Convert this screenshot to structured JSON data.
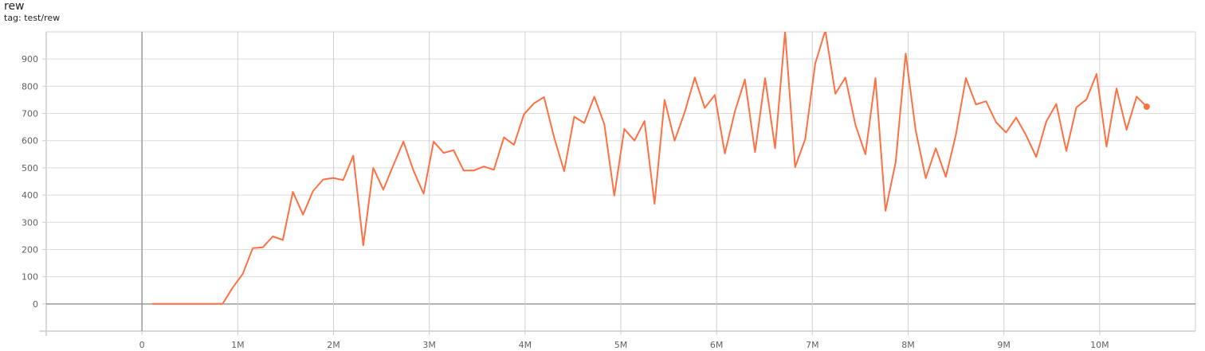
{
  "header": {
    "title": "rew",
    "tag": "tag: test/rew"
  },
  "chart_data": {
    "type": "line",
    "title": "rew",
    "subtitle": "tag: test/rew",
    "xlabel": "",
    "ylabel": "",
    "xlim": [
      -1000000,
      11000000
    ],
    "ylim": [
      -100,
      1000
    ],
    "grid": true,
    "line_color": "#ff7043",
    "xticks": [
      0,
      1000000,
      2000000,
      3000000,
      4000000,
      5000000,
      6000000,
      7000000,
      8000000,
      9000000,
      10000000
    ],
    "xtick_labels": [
      "0",
      "1M",
      "2M",
      "3M",
      "4M",
      "5M",
      "6M",
      "7M",
      "8M",
      "9M",
      "10M"
    ],
    "yticks": [
      0,
      100,
      200,
      300,
      400,
      500,
      600,
      700,
      800,
      900
    ],
    "ytick_labels": [
      "0",
      "100",
      "200",
      "300",
      "400",
      "500",
      "600",
      "700",
      "800",
      "900"
    ],
    "series": [
      {
        "x": [
          108000,
          213000,
          318000,
          423000,
          528000,
          632000,
          737000,
          842000,
          947000,
          1052000,
          1157000,
          1262000,
          1367000,
          1471000,
          1576000,
          1681000,
          1786000,
          1891000,
          1996000,
          2101000,
          2206000,
          2310000,
          2415000,
          2520000,
          2625000,
          2730000,
          2835000,
          2940000,
          3045000,
          3150000,
          3254000,
          3359000,
          3464000,
          3569000,
          3674000,
          3779000,
          3884000,
          3989000,
          4093000,
          4198000,
          4303000,
          4408000,
          4513000,
          4618000,
          4723000,
          4828000,
          4932000,
          5037000,
          5142000,
          5247000,
          5352000,
          5457000,
          5562000,
          5667000,
          5772000,
          5876000,
          5981000,
          6086000,
          6191000,
          6296000,
          6401000,
          6506000,
          6611000,
          6715000,
          6820000,
          6925000,
          7030000,
          7135000,
          7240000,
          7345000,
          7450000,
          7554000,
          7659000,
          7764000,
          7869000,
          7974000,
          8079000,
          8184000,
          8289000,
          8394000,
          8498000,
          8603000,
          8708000,
          8813000,
          8918000,
          9023000,
          9128000,
          9232000,
          9337000,
          9442000,
          9547000,
          9652000,
          9757000,
          9862000,
          9967000,
          10072000,
          10176000,
          10281000,
          10386000,
          10491000
        ],
        "y": [
          0,
          0,
          0,
          0,
          0,
          0,
          0,
          0,
          60,
          110,
          205,
          208,
          248,
          235,
          412,
          328,
          415,
          457,
          463,
          455,
          545,
          215,
          500,
          420,
          510,
          597,
          490,
          405,
          597,
          555,
          565,
          490,
          490,
          505,
          493,
          612,
          585,
          697,
          737,
          760,
          613,
          488,
          688,
          665,
          762,
          660,
          398,
          643,
          600,
          672,
          368,
          750,
          600,
          705,
          832,
          720,
          768,
          553,
          707,
          825,
          558,
          830,
          572,
          1000,
          503,
          605,
          883,
          1005,
          772,
          832,
          658,
          550,
          830,
          342,
          520,
          920,
          637,
          462,
          572,
          467,
          620,
          830,
          733,
          745,
          668,
          630,
          685,
          620,
          540,
          670,
          735,
          562,
          722,
          752,
          845,
          578,
          792,
          640,
          762,
          725
        ]
      }
    ]
  }
}
